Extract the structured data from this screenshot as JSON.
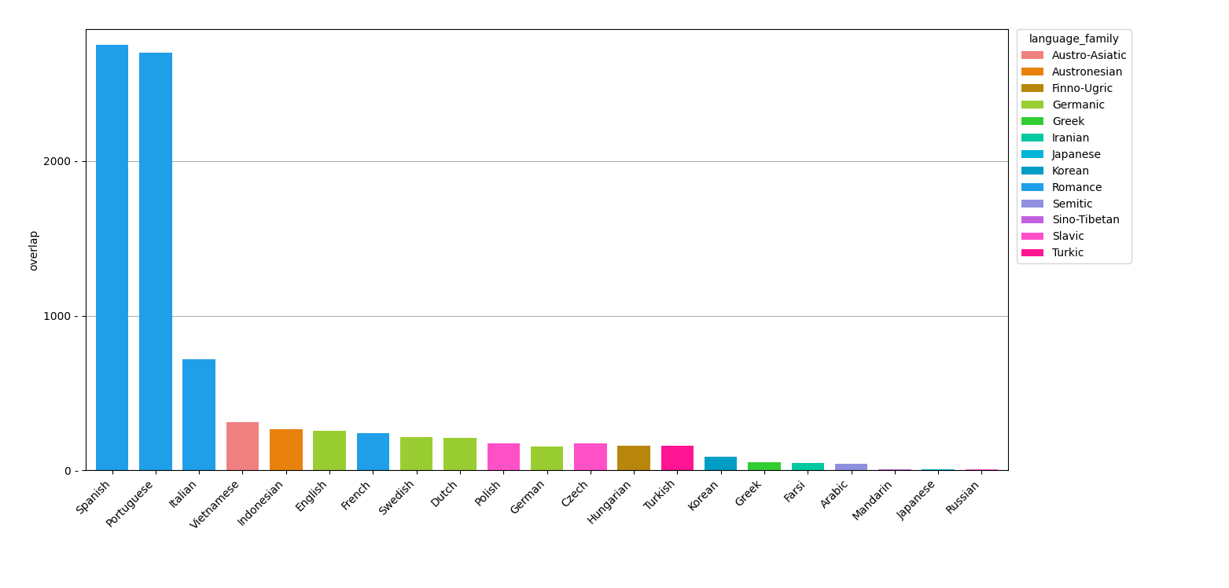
{
  "chart_data": {
    "type": "bar",
    "categories": [
      "Spanish",
      "Portuguese",
      "Italian",
      "Vietnamese",
      "Indonesian",
      "English",
      "French",
      "Swedish",
      "Dutch",
      "Polish",
      "German",
      "Czech",
      "Hungarian",
      "Turkish",
      "Korean",
      "Greek",
      "Farsi",
      "Arabic",
      "Mandarin",
      "Japanese",
      "Russian"
    ],
    "series": [
      {
        "name": "Austro-Asiatic",
        "color": "#F08080",
        "values": [
          null,
          null,
          null,
          310,
          null,
          null,
          null,
          null,
          null,
          null,
          null,
          null,
          null,
          null,
          null,
          null,
          null,
          null,
          null,
          null,
          null
        ]
      },
      {
        "name": "Austronesian",
        "color": "#E8820C",
        "values": [
          null,
          null,
          null,
          null,
          265,
          null,
          null,
          null,
          null,
          null,
          null,
          null,
          null,
          null,
          null,
          null,
          null,
          null,
          null,
          null,
          null
        ]
      },
      {
        "name": "Finno-Ugric",
        "color": "#B8860B",
        "values": [
          null,
          null,
          null,
          null,
          null,
          null,
          null,
          null,
          null,
          null,
          null,
          null,
          160,
          null,
          null,
          null,
          null,
          null,
          null,
          null,
          null
        ]
      },
      {
        "name": "Germanic",
        "color": "#9ACD32",
        "values": [
          null,
          null,
          null,
          null,
          null,
          255,
          null,
          215,
          210,
          null,
          155,
          null,
          null,
          null,
          null,
          null,
          null,
          null,
          null,
          null,
          null
        ]
      },
      {
        "name": "Greek",
        "color": "#32CD32",
        "values": [
          null,
          null,
          null,
          null,
          null,
          null,
          null,
          null,
          null,
          null,
          null,
          null,
          null,
          null,
          null,
          55,
          null,
          null,
          null,
          null,
          null
        ]
      },
      {
        "name": "Iranian",
        "color": "#00C8A0",
        "values": [
          null,
          null,
          null,
          null,
          null,
          null,
          null,
          null,
          null,
          null,
          null,
          null,
          null,
          null,
          null,
          null,
          50,
          null,
          null,
          null,
          null
        ]
      },
      {
        "name": "Japanese",
        "color": "#00B4D8",
        "values": [
          null,
          null,
          null,
          null,
          null,
          null,
          null,
          null,
          null,
          null,
          null,
          null,
          null,
          null,
          null,
          null,
          null,
          null,
          null,
          5,
          null
        ]
      },
      {
        "name": "Korean",
        "color": "#009DC4",
        "values": [
          null,
          null,
          null,
          null,
          null,
          null,
          null,
          null,
          null,
          null,
          null,
          null,
          null,
          null,
          90,
          null,
          null,
          null,
          null,
          null,
          null
        ]
      },
      {
        "name": "Romance",
        "color": "#1E9FE8",
        "values": [
          2750,
          2700,
          720,
          null,
          null,
          null,
          240,
          null,
          null,
          null,
          null,
          null,
          null,
          null,
          null,
          null,
          null,
          null,
          null,
          null,
          null
        ]
      },
      {
        "name": "Semitic",
        "color": "#9090E0",
        "values": [
          null,
          null,
          null,
          null,
          null,
          null,
          null,
          null,
          null,
          null,
          null,
          null,
          null,
          null,
          null,
          null,
          null,
          45,
          null,
          null,
          null
        ]
      },
      {
        "name": "Sino-Tibetan",
        "color": "#C060E0",
        "values": [
          null,
          null,
          null,
          null,
          null,
          null,
          null,
          null,
          null,
          null,
          null,
          null,
          null,
          null,
          null,
          null,
          null,
          null,
          5,
          null,
          null
        ]
      },
      {
        "name": "Slavic",
        "color": "#FF50C8",
        "values": [
          null,
          null,
          null,
          null,
          null,
          null,
          null,
          null,
          null,
          175,
          null,
          175,
          null,
          null,
          null,
          null,
          null,
          null,
          null,
          null,
          5
        ]
      },
      {
        "name": "Turkic",
        "color": "#FF1493",
        "values": [
          null,
          null,
          null,
          null,
          null,
          null,
          null,
          null,
          null,
          null,
          null,
          null,
          null,
          160,
          null,
          null,
          null,
          null,
          null,
          null,
          null
        ]
      }
    ],
    "ylabel": "overlap",
    "legend_title": "language_family",
    "legend": "upper left",
    "ylim": [
      0,
      2850
    ],
    "yticks": [
      {
        "value": 0,
        "label": "0 -"
      },
      {
        "value": 1000,
        "label": "1000 -"
      },
      {
        "value": 2000,
        "label": "2000 -"
      }
    ],
    "grid": true
  }
}
